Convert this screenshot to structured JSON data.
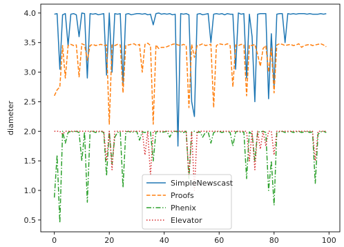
{
  "chart_data": {
    "type": "line",
    "title": "",
    "xlabel": "",
    "ylabel": "diameter",
    "xlim": [
      -4.95,
      103.95
    ],
    "ylim": [
      0.3,
      4.15
    ],
    "xticks": [
      0,
      20,
      40,
      60,
      80,
      100
    ],
    "yticks": [
      0.5,
      1.0,
      1.5,
      2.0,
      2.5,
      3.0,
      3.5,
      4.0
    ],
    "xtick_labels": [
      "0",
      "20",
      "40",
      "60",
      "80",
      "100"
    ],
    "ytick_labels": [
      "0.5",
      "1.0",
      "1.5",
      "2.0",
      "2.5",
      "3.0",
      "3.5",
      "4.0"
    ],
    "grid": false,
    "legend_position": "lower-center",
    "x": [
      0,
      1,
      2,
      3,
      4,
      5,
      6,
      7,
      8,
      9,
      10,
      11,
      12,
      13,
      14,
      15,
      16,
      17,
      18,
      19,
      20,
      21,
      22,
      23,
      24,
      25,
      26,
      27,
      28,
      29,
      30,
      31,
      32,
      33,
      34,
      35,
      36,
      37,
      38,
      39,
      40,
      41,
      42,
      43,
      44,
      45,
      46,
      47,
      48,
      49,
      50,
      51,
      52,
      53,
      54,
      55,
      56,
      57,
      58,
      59,
      60,
      61,
      62,
      63,
      64,
      65,
      66,
      67,
      68,
      69,
      70,
      71,
      72,
      73,
      74,
      75,
      76,
      77,
      78,
      79,
      80,
      81,
      82,
      83,
      84,
      85,
      86,
      87,
      88,
      89,
      90,
      91,
      92,
      93,
      94,
      95,
      96,
      97,
      98,
      99
    ],
    "series": [
      {
        "name": "SimpleNewscast",
        "color": "#1f77b4",
        "dash": "solid",
        "values": [
          3.98,
          3.99,
          3.05,
          3.97,
          3.99,
          3.45,
          3.98,
          3.99,
          3.97,
          3.6,
          4.0,
          3.99,
          2.9,
          3.99,
          3.98,
          3.99,
          3.97,
          3.98,
          3.99,
          2.95,
          4.0,
          3.0,
          3.99,
          3.98,
          3.99,
          2.8,
          3.98,
          3.99,
          3.97,
          3.98,
          3.99,
          3.99,
          3.98,
          3.99,
          3.97,
          3.98,
          3.8,
          3.99,
          4.0,
          3.98,
          3.99,
          3.98,
          3.99,
          3.97,
          3.98,
          1.75,
          3.99,
          3.98,
          3.99,
          3.97,
          2.5,
          2.25,
          3.98,
          3.99,
          3.97,
          3.98,
          3.99,
          3.5,
          3.98,
          3.99,
          3.98,
          3.99,
          3.97,
          3.99,
          3.98,
          3.98,
          3.05,
          4.0,
          3.98,
          3.99,
          2.9,
          3.98,
          3.6,
          2.5,
          3.98,
          3.99,
          3.99,
          3.99,
          2.55,
          3.65,
          2.75,
          3.98,
          3.99,
          3.99,
          3.5,
          3.99,
          3.98,
          3.99,
          3.98,
          3.99,
          3.99,
          3.99,
          3.98,
          3.99,
          3.98,
          3.98,
          3.98,
          3.99,
          3.98,
          3.99
        ]
      },
      {
        "name": "Proofs",
        "color": "#ff7f0e",
        "dash": "dashed",
        "values": [
          2.6,
          2.7,
          2.75,
          3.45,
          2.9,
          3.45,
          3.47,
          3.45,
          3.46,
          2.92,
          3.48,
          3.46,
          3.2,
          3.45,
          3.47,
          3.45,
          3.46,
          3.47,
          3.45,
          3.46,
          2.12,
          3.46,
          3.45,
          3.47,
          3.46,
          2.65,
          3.45,
          3.46,
          3.47,
          3.48,
          3.45,
          3.47,
          3.0,
          3.47,
          3.49,
          3.45,
          2.12,
          3.46,
          3.4,
          3.42,
          3.42,
          3.43,
          3.45,
          3.47,
          3.48,
          3.46,
          3.45,
          3.47,
          3.45,
          2.4,
          3.47,
          3.25,
          3.45,
          3.46,
          3.48,
          3.45,
          3.46,
          3.47,
          2.4,
          3.45,
          3.48,
          3.47,
          3.46,
          3.48,
          3.45,
          2.75,
          3.46,
          3.45,
          3.47,
          3.46,
          2.6,
          3.46,
          3.45,
          3.47,
          3.3,
          3.1,
          3.4,
          3.45,
          3.0,
          3.4,
          2.65,
          3.46,
          3.48,
          3.47,
          3.45,
          3.46,
          3.47,
          3.45,
          3.46,
          3.48,
          3.42,
          3.45,
          3.46,
          3.47,
          3.45,
          3.46,
          3.47,
          3.48,
          3.46,
          3.43
        ]
      },
      {
        "name": "Phenix",
        "color": "#2ca02c",
        "dash": "dashdot",
        "values": [
          0.88,
          1.6,
          0.45,
          2.0,
          1.8,
          1.98,
          2.0,
          1.99,
          2.0,
          1.98,
          1.5,
          1.99,
          0.8,
          1.99,
          2.0,
          1.98,
          1.99,
          2.0,
          1.98,
          1.25,
          2.0,
          1.45,
          1.9,
          1.98,
          1.99,
          1.05,
          1.99,
          2.0,
          1.98,
          1.99,
          2.0,
          1.85,
          1.99,
          1.98,
          2.0,
          1.99,
          1.5,
          1.99,
          2.0,
          1.98,
          1.99,
          2.0,
          1.9,
          1.99,
          2.0,
          1.99,
          1.99,
          1.98,
          2.0,
          1.2,
          1.99,
          2.0,
          1.98,
          1.99,
          1.9,
          1.98,
          1.99,
          1.8,
          1.98,
          1.99,
          2.0,
          1.98,
          1.99,
          2.0,
          1.98,
          1.75,
          1.99,
          2.0,
          1.98,
          1.99,
          1.2,
          1.99,
          1.95,
          1.5,
          1.99,
          1.99,
          2.0,
          1.98,
          1.0,
          1.5,
          0.75,
          1.98,
          1.99,
          2.0,
          1.98,
          1.99,
          2.0,
          1.98,
          1.99,
          2.0,
          1.98,
          1.99,
          2.0,
          1.98,
          1.99,
          1.12,
          1.95,
          1.99,
          2.0,
          1.98
        ]
      },
      {
        "name": "Elevator",
        "color": "#d62728",
        "dash": "dotted",
        "values": [
          2.0,
          2.0,
          2.0,
          1.95,
          2.0,
          2.0,
          2.0,
          2.0,
          2.0,
          2.0,
          2.0,
          2.0,
          2.0,
          2.0,
          2.0,
          2.0,
          2.0,
          2.0,
          2.0,
          1.5,
          2.0,
          1.35,
          2.0,
          2.0,
          2.0,
          2.0,
          2.0,
          2.0,
          2.0,
          2.0,
          2.0,
          2.0,
          2.0,
          1.6,
          2.0,
          1.25,
          2.0,
          2.0,
          2.0,
          2.0,
          2.0,
          2.0,
          2.0,
          2.0,
          2.0,
          2.0,
          2.0,
          2.0,
          2.0,
          1.25,
          2.0,
          1.0,
          2.0,
          2.0,
          2.0,
          2.0,
          2.0,
          2.0,
          2.0,
          2.0,
          2.0,
          2.0,
          2.0,
          2.0,
          2.0,
          2.0,
          2.0,
          2.0,
          2.0,
          2.0,
          2.0,
          1.5,
          2.0,
          1.35,
          2.0,
          1.7,
          2.0,
          1.75,
          2.0,
          2.0,
          1.6,
          2.0,
          2.0,
          2.0,
          2.0,
          2.0,
          2.0,
          2.0,
          2.0,
          2.0,
          2.0,
          2.0,
          2.0,
          2.0,
          2.0,
          1.5,
          2.0,
          2.0,
          2.0,
          2.0
        ]
      }
    ]
  }
}
